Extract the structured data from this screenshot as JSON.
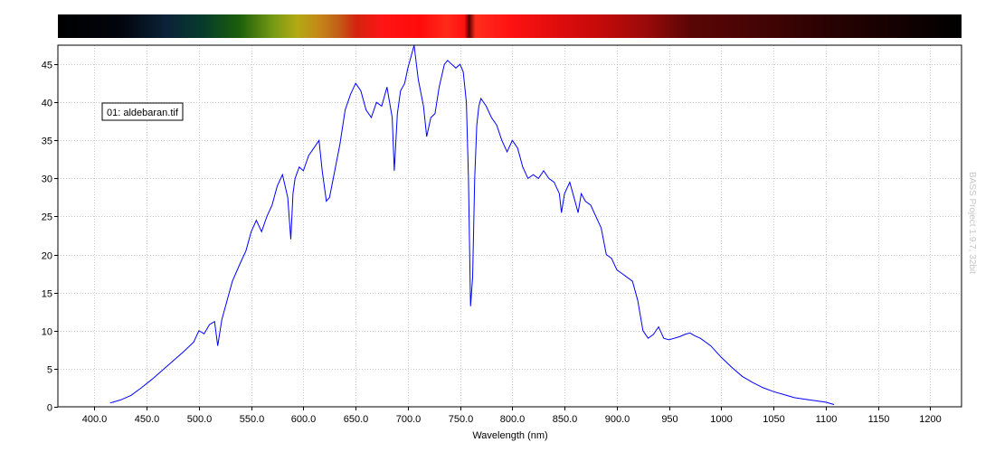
{
  "chart_data": {
    "type": "line",
    "title": "",
    "xlabel": "Wavelength (nm)",
    "ylabel": "",
    "xlim": [
      365,
      1230
    ],
    "ylim": [
      0,
      47.5
    ],
    "x_ticks": [
      400,
      450,
      500,
      550,
      600,
      650,
      700,
      750,
      800,
      850,
      900,
      950,
      1000,
      1050,
      1100,
      1150,
      1200
    ],
    "x_tick_labels": [
      "400.0",
      "450.0",
      "500.0",
      "550.0",
      "600.0",
      "650.0",
      "700.0",
      "750.0",
      "800.0",
      "850.0",
      "900.0",
      "950",
      "1000",
      "1050",
      "1100",
      "1150",
      "1200"
    ],
    "y_ticks": [
      0,
      5,
      10,
      15,
      20,
      25,
      30,
      35,
      40,
      45
    ],
    "y_tick_labels": [
      "0",
      "5",
      "10",
      "15",
      "20",
      "25",
      "30",
      "35",
      "40",
      "45"
    ],
    "grid": true,
    "line_color": "#0000ff",
    "legend_placement": "top-left",
    "series": [
      {
        "name": "01: aldebaran.tif",
        "x": [
          415,
          425,
          435,
          445,
          455,
          465,
          475,
          485,
          495,
          500,
          505,
          510,
          515,
          518,
          522,
          528,
          532,
          540,
          545,
          550,
          555,
          560,
          565,
          570,
          575,
          580,
          585,
          588,
          590,
          592,
          596,
          600,
          605,
          610,
          615,
          618,
          622,
          625,
          630,
          635,
          640,
          645,
          650,
          655,
          660,
          665,
          670,
          675,
          680,
          685,
          687,
          690,
          693,
          697,
          700,
          703,
          706,
          710,
          715,
          718,
          722,
          726,
          730,
          735,
          738,
          742,
          746,
          750,
          753,
          756,
          758,
          760,
          762,
          764,
          766,
          768,
          770,
          775,
          780,
          785,
          790,
          795,
          800,
          805,
          810,
          815,
          820,
          825,
          830,
          835,
          840,
          845,
          847,
          850,
          855,
          860,
          863,
          866,
          870,
          875,
          880,
          885,
          890,
          895,
          900,
          905,
          910,
          915,
          920,
          925,
          930,
          935,
          940,
          945,
          950,
          955,
          960,
          965,
          970,
          975,
          980,
          990,
          1000,
          1010,
          1020,
          1030,
          1040,
          1050,
          1060,
          1070,
          1080,
          1090,
          1100,
          1108
        ],
        "y": [
          0.5,
          0.9,
          1.5,
          2.5,
          3.6,
          4.8,
          6.0,
          7.2,
          8.5,
          10.0,
          9.6,
          10.8,
          11.2,
          8.0,
          11.5,
          14.5,
          16.5,
          19.0,
          20.5,
          23.0,
          24.5,
          23.0,
          25.0,
          26.5,
          29.0,
          30.5,
          27.5,
          22.0,
          28.0,
          30.0,
          31.5,
          31.0,
          33.0,
          34.0,
          35.0,
          31.0,
          27.0,
          27.5,
          31.0,
          34.5,
          39.0,
          41.0,
          42.5,
          41.5,
          39.0,
          38.0,
          40.0,
          39.5,
          42.0,
          38.0,
          31.0,
          38.5,
          41.5,
          42.5,
          44.5,
          46.0,
          47.5,
          43.0,
          39.5,
          35.5,
          38.0,
          38.5,
          42.0,
          45.0,
          45.5,
          45.0,
          44.5,
          45.0,
          44.0,
          40.0,
          30.0,
          13.2,
          17.0,
          30.0,
          37.0,
          39.5,
          40.5,
          39.5,
          38.0,
          37.0,
          35.0,
          33.5,
          35.0,
          34.0,
          31.5,
          30.0,
          30.5,
          30.0,
          31.0,
          30.0,
          29.5,
          28.0,
          25.5,
          28.0,
          29.5,
          27.0,
          25.5,
          28.0,
          27.0,
          26.5,
          25.0,
          23.5,
          20.0,
          19.5,
          18.0,
          17.5,
          17.0,
          16.5,
          14.0,
          10.0,
          9.0,
          9.5,
          10.5,
          9.0,
          8.8,
          9.0,
          9.2,
          9.5,
          9.7,
          9.3,
          9.0,
          8.0,
          6.5,
          5.2,
          4.0,
          3.2,
          2.5,
          2.0,
          1.6,
          1.2,
          1.0,
          0.8,
          0.6,
          0.3
        ]
      }
    ],
    "watermark": "BASS Project 1.9.7, 32bit"
  }
}
